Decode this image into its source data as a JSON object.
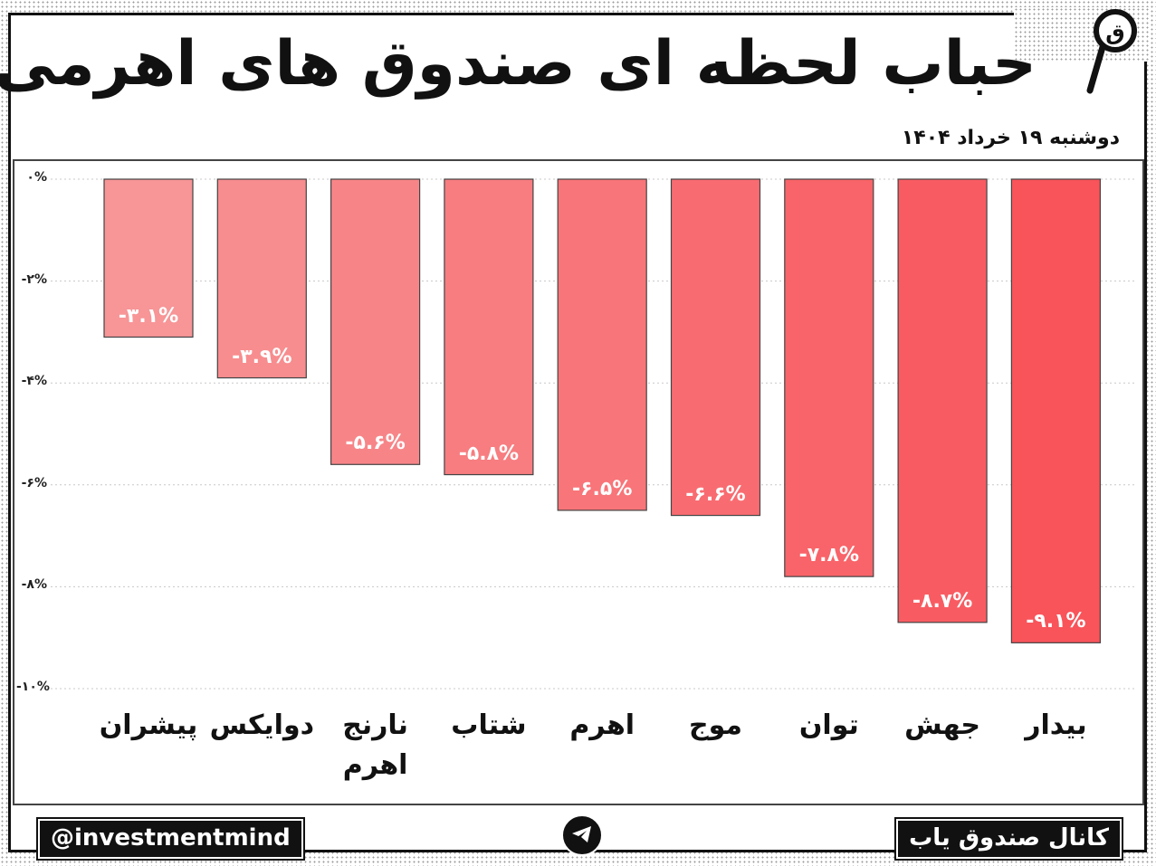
{
  "header": {
    "title": "حباب لحظه ای صندوق های اهرمی",
    "date": "دوشنبه ۱۹ خرداد ۱۴۰۴"
  },
  "chart_data": {
    "type": "bar",
    "title": "حباب لحظه ای صندوق های اهرمی",
    "subtitle": "دوشنبه ۱۹ خرداد ۱۴۰۴",
    "xlabel": "",
    "ylabel": "",
    "categories": [
      "پیشران",
      "دوایکس",
      "نارنج اهرم",
      "شتاب",
      "اهرم",
      "موج",
      "توان",
      "جهش",
      "بیدار"
    ],
    "values": [
      -3.1,
      -3.9,
      -5.6,
      -5.8,
      -6.5,
      -6.6,
      -7.8,
      -8.7,
      -9.1
    ],
    "value_labels": [
      "-۳.۱%",
      "-۳.۹%",
      "-۵.۶%",
      "-۵.۸%",
      "-۶.۵%",
      "-۶.۶%",
      "-۷.۸%",
      "-۸.۷%",
      "-۹.۱%"
    ],
    "ylim": [
      -10,
      0
    ],
    "yticks": [
      0,
      -2,
      -4,
      -6,
      -8,
      -10
    ],
    "ytick_labels": [
      "۰%",
      "-۲%",
      "-۴%",
      "-۶%",
      "-۸%",
      "-۱۰%"
    ],
    "grid": true,
    "legend": "none",
    "colors": {
      "bar_light": "#f79597",
      "bar_dark": "#f8545a",
      "bar_stroke": "#444444",
      "grid": "#c8c8c8"
    }
  },
  "footer": {
    "handle": "@investmentmind",
    "channel": "کانال صندوق یاب",
    "telegram_icon": "telegram-icon",
    "logo_icon": "magnifier-logo-icon"
  }
}
